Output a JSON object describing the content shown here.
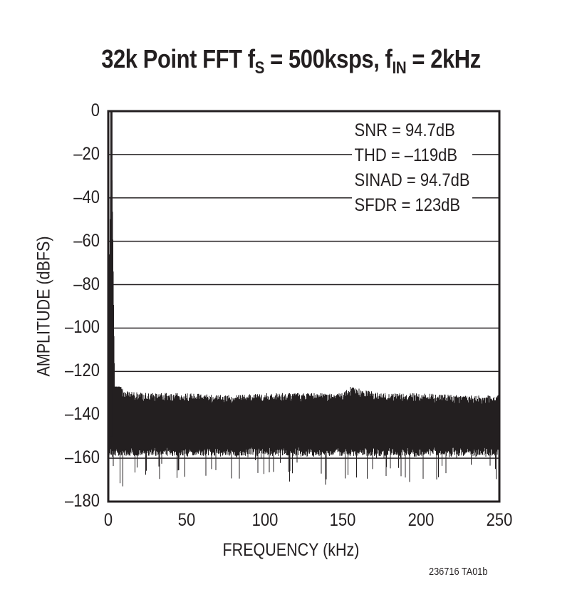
{
  "chart_data": {
    "type": "line",
    "title": "32k Point FFT fS = 500ksps, fIN = 2kHz",
    "title_parts": {
      "lead": "32k Point FFT f",
      "sub1": "S",
      "mid": " = 500ksps, f",
      "sub2": "IN",
      "tail": " = 2kHz"
    },
    "xlabel": "FREQUENCY (kHz)",
    "ylabel": "AMPLITUDE (dBFS)",
    "xlim": [
      0,
      250
    ],
    "ylim": [
      -180,
      0
    ],
    "x_ticks": [
      "0",
      "50",
      "100",
      "150",
      "200",
      "250"
    ],
    "y_ticks": [
      "0",
      "–20",
      "–40",
      "–60",
      "–80",
      "–100",
      "–120",
      "–140",
      "–160",
      "–180"
    ],
    "grid": "horizontal",
    "annotations": [
      "SNR = 94.7dB",
      "THD = –119dB",
      "SINAD = 94.7dB",
      "SFDR = 123dB"
    ],
    "series": [
      {
        "name": "FFT spectrum",
        "fundamental": {
          "freq_khz": 2,
          "amplitude_dbfs": 0
        },
        "noise_floor": {
          "upper_envelope_dbfs": -130,
          "dense_core_range_dbfs": [
            -155,
            -130
          ],
          "min_spikes_dbfs": -176
        },
        "x": [
          0,
          2,
          4,
          10,
          25,
          50,
          75,
          100,
          125,
          150,
          155,
          175,
          200,
          225,
          250
        ],
        "y_peak": [
          -114,
          0,
          -122,
          -129,
          -130,
          -130,
          -131,
          -130,
          -130,
          -130,
          -127,
          -130,
          -130,
          -131,
          -131
        ],
        "y_min": [
          -165,
          -165,
          -170,
          -176,
          -168,
          -172,
          -166,
          -168,
          -175,
          -172,
          -170,
          -174,
          -170,
          -172,
          -173
        ]
      }
    ]
  },
  "footer_code": "236716 TA01b"
}
